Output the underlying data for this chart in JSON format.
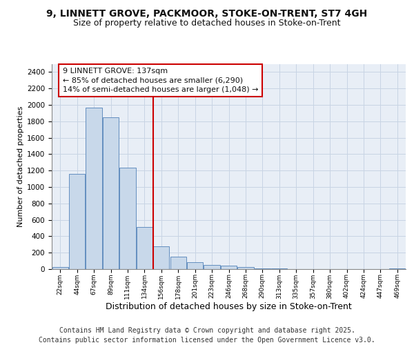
{
  "title_line1": "9, LINNETT GROVE, PACKMOOR, STOKE-ON-TRENT, ST7 4GH",
  "title_line2": "Size of property relative to detached houses in Stoke-on-Trent",
  "xlabel": "Distribution of detached houses by size in Stoke-on-Trent",
  "ylabel": "Number of detached properties",
  "categories": [
    "22sqm",
    "44sqm",
    "67sqm",
    "89sqm",
    "111sqm",
    "134sqm",
    "156sqm",
    "178sqm",
    "201sqm",
    "223sqm",
    "246sqm",
    "268sqm",
    "290sqm",
    "313sqm",
    "335sqm",
    "357sqm",
    "380sqm",
    "402sqm",
    "424sqm",
    "447sqm",
    "469sqm"
  ],
  "values": [
    25,
    1160,
    1965,
    1850,
    1235,
    515,
    275,
    150,
    88,
    48,
    38,
    22,
    10,
    5,
    3,
    2,
    1,
    1,
    1,
    1,
    10
  ],
  "bar_color": "#c8d8ea",
  "bar_edge_color": "#5080b8",
  "vline_x": 5.5,
  "vline_color": "#cc0000",
  "annotation_text": "9 LINNETT GROVE: 137sqm\n← 85% of detached houses are smaller (6,290)\n14% of semi-detached houses are larger (1,048) →",
  "annotation_box_edgecolor": "#cc0000",
  "ylim_max": 2500,
  "yticks": [
    0,
    200,
    400,
    600,
    800,
    1000,
    1200,
    1400,
    1600,
    1800,
    2000,
    2200,
    2400
  ],
  "grid_color": "#c8d4e4",
  "background_color": "#e8eef6",
  "footer_text": "Contains HM Land Registry data © Crown copyright and database right 2025.\nContains public sector information licensed under the Open Government Licence v3.0.",
  "title_fontsize": 10,
  "subtitle_fontsize": 9,
  "annotation_fontsize": 8,
  "footer_fontsize": 7,
  "ylabel_fontsize": 8,
  "xlabel_fontsize": 9
}
